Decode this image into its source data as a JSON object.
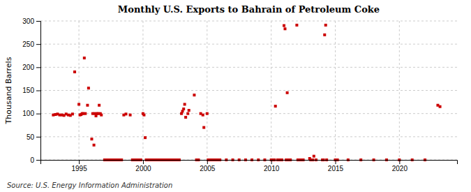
{
  "chart_data": {
    "type": "scatter",
    "title": "Monthly U.S. Exports to Bahrain of Petroleum Coke",
    "ylabel": "Thousand Barrels",
    "source": "Source: U.S. Energy Information Administration",
    "color": "#cc0000",
    "marker": "square",
    "grid": true,
    "xlim": [
      1992.0,
      2024.5
    ],
    "ylim": [
      0,
      300
    ],
    "xticks": [
      1995,
      2000,
      2005,
      2010,
      2015,
      2020
    ],
    "yticks": [
      0,
      50,
      100,
      150,
      200,
      250,
      300
    ],
    "x": [
      1993.0,
      1993.17,
      1993.33,
      1993.5,
      1993.67,
      1993.83,
      1994.0,
      1994.17,
      1994.33,
      1994.5,
      1994.67,
      1995.0,
      1995.08,
      1995.17,
      1995.25,
      1995.33,
      1995.42,
      1995.5,
      1995.67,
      1995.75,
      1996.0,
      1996.08,
      1996.17,
      1996.25,
      1996.33,
      1996.42,
      1996.5,
      1996.58,
      1996.67,
      1996.75,
      1997.0,
      1997.17,
      1997.33,
      1997.5,
      1997.67,
      1997.83,
      1998.0,
      1998.17,
      1998.33,
      1998.5,
      1998.67,
      1999.0,
      1999.17,
      1999.33,
      1999.5,
      1999.67,
      1999.83,
      2000.0,
      2000.08,
      2000.17,
      2000.25,
      2000.33,
      2000.42,
      2000.5,
      2000.67,
      2000.83,
      2001.0,
      2001.08,
      2001.17,
      2001.25,
      2001.33,
      2001.5,
      2001.67,
      2001.83,
      2002.0,
      2002.08,
      2002.17,
      2002.25,
      2002.33,
      2002.5,
      2002.67,
      2002.83,
      2003.0,
      2003.08,
      2003.17,
      2003.25,
      2003.33,
      2003.5,
      2003.58,
      2004.0,
      2004.17,
      2004.33,
      2004.5,
      2004.67,
      2004.75,
      2005.0,
      2005.08,
      2005.17,
      2005.25,
      2005.33,
      2005.42,
      2005.5,
      2005.67,
      2005.83,
      2006.0,
      2006.5,
      2007.0,
      2007.5,
      2008.0,
      2008.5,
      2009.0,
      2009.5,
      2010.0,
      2010.08,
      2010.17,
      2010.25,
      2010.33,
      2010.5,
      2010.67,
      2010.83,
      2011.0,
      2011.08,
      2011.17,
      2011.25,
      2011.33,
      2011.5,
      2012.0,
      2012.08,
      2012.17,
      2012.25,
      2012.33,
      2012.5,
      2013.0,
      2013.08,
      2013.17,
      2013.25,
      2013.33,
      2013.5,
      2014.0,
      2014.08,
      2014.17,
      2014.25,
      2014.33,
      2015.0,
      2015.08,
      2015.17,
      2016.0,
      2017.0,
      2018.0,
      2019.0,
      2020.0,
      2021.0,
      2022.0,
      2023.0,
      2023.17
    ],
    "values": [
      97,
      98,
      99,
      97,
      97,
      96,
      99,
      97,
      96,
      99,
      190,
      120,
      97,
      98,
      100,
      100,
      220,
      100,
      118,
      155,
      45,
      100,
      32,
      100,
      95,
      100,
      100,
      118,
      100,
      97,
      0,
      0,
      0,
      0,
      0,
      0,
      0,
      0,
      0,
      97,
      99,
      97,
      0,
      0,
      0,
      0,
      0,
      100,
      97,
      48,
      0,
      0,
      0,
      0,
      0,
      0,
      0,
      0,
      0,
      0,
      0,
      0,
      0,
      0,
      0,
      0,
      0,
      0,
      0,
      0,
      0,
      0,
      100,
      105,
      110,
      120,
      92,
      100,
      107,
      140,
      0,
      0,
      100,
      97,
      70,
      100,
      0,
      0,
      0,
      0,
      0,
      0,
      0,
      0,
      0,
      0,
      0,
      0,
      0,
      0,
      0,
      0,
      0,
      0,
      0,
      0,
      116,
      0,
      0,
      0,
      290,
      283,
      0,
      145,
      0,
      0,
      291,
      0,
      0,
      0,
      0,
      0,
      3,
      0,
      0,
      0,
      8,
      0,
      0,
      0,
      270,
      291,
      0,
      0,
      0,
      0,
      0,
      0,
      0,
      0,
      0,
      0,
      0,
      118,
      115
    ]
  }
}
